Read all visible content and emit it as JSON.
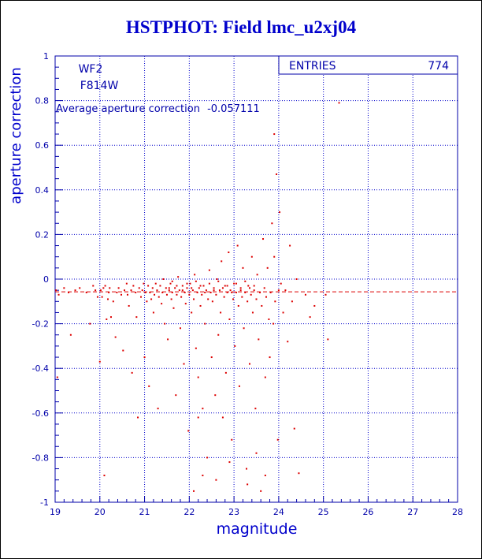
{
  "title": "HSTPHOT: Field lmc_u2xj04",
  "chart_data": {
    "type": "scatter",
    "title": "HSTPHOT: Field lmc_u2xj04",
    "xlabel": "magnitude",
    "ylabel": "aperture correction",
    "xlim": [
      19,
      28
    ],
    "ylim": [
      -1,
      1
    ],
    "x_ticks": [
      "19",
      "20",
      "21",
      "22",
      "23",
      "24",
      "25",
      "26",
      "27",
      "28"
    ],
    "y_ticks": [
      "-1",
      "-0.8",
      "-0.6",
      "-0.4",
      "-0.2",
      "0",
      "0.2",
      "0.4",
      "0.6",
      "0.8",
      "1"
    ],
    "grid": true,
    "annotations": {
      "camera": "WF2",
      "filter": "F814W",
      "average_label": "Average aperture correction",
      "average_value": "-0.057111"
    },
    "stats_box": {
      "label": "ENTRIES",
      "value": "774"
    },
    "reference_line_y": -0.057,
    "colors": {
      "points": "#dd0000",
      "axes": "#0000aa",
      "grid": "#0000cc",
      "title": "#0000cc"
    },
    "series": [
      {
        "points": [
          [
            19.02,
            -0.05
          ],
          [
            19.05,
            -0.44
          ],
          [
            19.08,
            -0.07
          ],
          [
            19.2,
            -0.04
          ],
          [
            19.3,
            -0.06
          ],
          [
            19.35,
            -0.25
          ],
          [
            19.45,
            -0.05
          ],
          [
            19.55,
            -0.04
          ],
          [
            19.7,
            -0.06
          ],
          [
            19.78,
            -0.2
          ],
          [
            19.85,
            -0.03
          ],
          [
            19.9,
            -0.05
          ],
          [
            19.95,
            -0.08
          ],
          [
            20.0,
            -0.37
          ],
          [
            20.02,
            -0.05
          ],
          [
            20.05,
            -0.08
          ],
          [
            20.08,
            -0.04
          ],
          [
            20.1,
            -0.88
          ],
          [
            20.12,
            -0.03
          ],
          [
            20.15,
            -0.18
          ],
          [
            20.18,
            -0.09
          ],
          [
            20.2,
            -0.06
          ],
          [
            20.22,
            -0.04
          ],
          [
            20.25,
            -0.17
          ],
          [
            20.3,
            -0.1
          ],
          [
            20.35,
            -0.26
          ],
          [
            20.38,
            -0.06
          ],
          [
            20.42,
            -0.04
          ],
          [
            20.48,
            -0.07
          ],
          [
            20.52,
            -0.32
          ],
          [
            20.55,
            -0.05
          ],
          [
            20.6,
            -0.02
          ],
          [
            20.62,
            -0.07
          ],
          [
            20.65,
            -0.12
          ],
          [
            20.7,
            -0.05
          ],
          [
            20.72,
            -0.42
          ],
          [
            20.75,
            -0.03
          ],
          [
            20.8,
            -0.06
          ],
          [
            20.82,
            -0.17
          ],
          [
            20.85,
            -0.62
          ],
          [
            20.88,
            -0.04
          ],
          [
            20.92,
            -0.08
          ],
          [
            20.95,
            -0.05
          ],
          [
            20.98,
            -0.02
          ],
          [
            21.0,
            -0.35
          ],
          [
            21.02,
            -0.06
          ],
          [
            21.05,
            -0.1
          ],
          [
            21.08,
            -0.03
          ],
          [
            21.1,
            -0.48
          ],
          [
            21.12,
            -0.06
          ],
          [
            21.15,
            -0.09
          ],
          [
            21.18,
            -0.04
          ],
          [
            21.2,
            -0.15
          ],
          [
            21.22,
            -0.07
          ],
          [
            21.25,
            -0.02
          ],
          [
            21.28,
            -0.05
          ],
          [
            21.3,
            -0.58
          ],
          [
            21.32,
            -0.08
          ],
          [
            21.35,
            -0.03
          ],
          [
            21.38,
            -0.11
          ],
          [
            21.4,
            -0.06
          ],
          [
            21.42,
            0.0
          ],
          [
            21.45,
            -0.2
          ],
          [
            21.48,
            -0.04
          ],
          [
            21.5,
            -0.07
          ],
          [
            21.52,
            -0.27
          ],
          [
            21.55,
            -0.05
          ],
          [
            21.58,
            -0.02
          ],
          [
            21.6,
            -0.09
          ],
          [
            21.62,
            -0.06
          ],
          [
            21.65,
            -0.13
          ],
          [
            21.68,
            -0.04
          ],
          [
            21.7,
            -0.52
          ],
          [
            21.72,
            -0.07
          ],
          [
            21.75,
            0.01
          ],
          [
            21.78,
            -0.05
          ],
          [
            21.8,
            -0.22
          ],
          [
            21.82,
            -0.08
          ],
          [
            21.85,
            -0.03
          ],
          [
            21.88,
            -0.38
          ],
          [
            21.9,
            -0.06
          ],
          [
            21.92,
            -0.11
          ],
          [
            21.95,
            -0.04
          ],
          [
            21.98,
            -0.68
          ],
          [
            22.0,
            -0.07
          ],
          [
            22.02,
            -0.02
          ],
          [
            22.05,
            -0.15
          ],
          [
            22.08,
            -0.05
          ],
          [
            22.1,
            -0.09
          ],
          [
            22.12,
            0.02
          ],
          [
            22.15,
            -0.31
          ],
          [
            22.18,
            -0.06
          ],
          [
            22.2,
            -0.44
          ],
          [
            22.22,
            -0.04
          ],
          [
            22.25,
            -0.12
          ],
          [
            22.28,
            -0.07
          ],
          [
            22.3,
            -0.58
          ],
          [
            22.32,
            -0.03
          ],
          [
            22.35,
            -0.2
          ],
          [
            22.38,
            -0.05
          ],
          [
            22.4,
            -0.8
          ],
          [
            22.42,
            -0.09
          ],
          [
            22.45,
            0.04
          ],
          [
            22.48,
            -0.06
          ],
          [
            22.5,
            -0.35
          ],
          [
            22.52,
            -0.1
          ],
          [
            22.55,
            -0.04
          ],
          [
            22.58,
            -0.52
          ],
          [
            22.6,
            -0.07
          ],
          [
            22.62,
            0.0
          ],
          [
            22.65,
            -0.25
          ],
          [
            22.68,
            -0.05
          ],
          [
            22.7,
            -0.15
          ],
          [
            22.72,
            0.08
          ],
          [
            22.75,
            -0.62
          ],
          [
            22.78,
            -0.08
          ],
          [
            22.8,
            -0.03
          ],
          [
            22.82,
            -0.42
          ],
          [
            22.85,
            -0.06
          ],
          [
            22.88,
            0.12
          ],
          [
            22.9,
            -0.18
          ],
          [
            22.92,
            -0.05
          ],
          [
            22.95,
            -0.72
          ],
          [
            22.98,
            -0.09
          ],
          [
            23.0,
            -0.02
          ],
          [
            23.02,
            -0.3
          ],
          [
            23.05,
            -0.06
          ],
          [
            23.08,
            0.15
          ],
          [
            23.1,
            -0.12
          ],
          [
            23.12,
            -0.48
          ],
          [
            23.15,
            -0.04
          ],
          [
            23.18,
            -0.08
          ],
          [
            23.2,
            0.05
          ],
          [
            23.22,
            -0.22
          ],
          [
            23.25,
            -0.06
          ],
          [
            23.28,
            -0.85
          ],
          [
            23.3,
            -0.1
          ],
          [
            23.32,
            -0.03
          ],
          [
            23.35,
            -0.38
          ],
          [
            23.38,
            -0.07
          ],
          [
            23.4,
            0.1
          ],
          [
            23.42,
            -0.15
          ],
          [
            23.45,
            -0.05
          ],
          [
            23.48,
            -0.58
          ],
          [
            23.5,
            -0.09
          ],
          [
            23.52,
            0.02
          ],
          [
            23.55,
            -0.27
          ],
          [
            23.58,
            -0.06
          ],
          [
            23.6,
            -0.95
          ],
          [
            23.62,
            -0.12
          ],
          [
            23.65,
            0.18
          ],
          [
            23.68,
            -0.04
          ],
          [
            23.7,
            -0.44
          ],
          [
            23.72,
            -0.08
          ],
          [
            23.75,
            0.05
          ],
          [
            23.78,
            -0.18
          ],
          [
            23.8,
            -0.35
          ],
          [
            23.82,
            -0.06
          ],
          [
            23.85,
            0.25
          ],
          [
            23.88,
            -0.2
          ],
          [
            23.9,
            0.65
          ],
          [
            23.92,
            -0.1
          ],
          [
            23.95,
            0.47
          ],
          [
            23.98,
            -0.72
          ],
          [
            24.0,
            -0.05
          ],
          [
            24.02,
            0.3
          ],
          [
            24.05,
            -0.02
          ],
          [
            24.1,
            -0.15
          ],
          [
            24.15,
            -0.05
          ],
          [
            24.2,
            -0.28
          ],
          [
            24.3,
            -0.1
          ],
          [
            24.35,
            -0.67
          ],
          [
            24.4,
            0.0
          ],
          [
            24.45,
            -0.87
          ],
          [
            24.6,
            -0.07
          ],
          [
            24.7,
            -0.17
          ],
          [
            24.8,
            -0.12
          ],
          [
            25.05,
            -0.07
          ],
          [
            25.1,
            -0.27
          ],
          [
            25.35,
            0.79
          ],
          [
            21.55,
            -0.04
          ],
          [
            21.62,
            -0.01
          ],
          [
            21.72,
            -0.03
          ],
          [
            21.85,
            -0.05
          ],
          [
            21.95,
            -0.02
          ],
          [
            22.05,
            -0.04
          ],
          [
            22.15,
            -0.01
          ],
          [
            22.25,
            -0.03
          ],
          [
            22.35,
            -0.06
          ],
          [
            22.45,
            -0.02
          ],
          [
            22.55,
            -0.05
          ],
          [
            22.65,
            -0.01
          ],
          [
            22.75,
            -0.04
          ],
          [
            22.85,
            -0.03
          ],
          [
            22.95,
            -0.06
          ],
          [
            23.05,
            -0.02
          ],
          [
            23.15,
            -0.05
          ],
          [
            23.25,
            -0.01
          ],
          [
            23.35,
            -0.04
          ],
          [
            23.45,
            -0.03
          ],
          [
            22.1,
            -0.95
          ],
          [
            22.3,
            -0.88
          ],
          [
            22.6,
            -0.9
          ],
          [
            22.9,
            -0.82
          ],
          [
            23.3,
            -0.92
          ],
          [
            23.5,
            -0.78
          ],
          [
            23.9,
            0.1
          ],
          [
            24.25,
            0.15
          ],
          [
            23.7,
            -0.88
          ],
          [
            22.2,
            -0.62
          ]
        ]
      }
    ]
  }
}
